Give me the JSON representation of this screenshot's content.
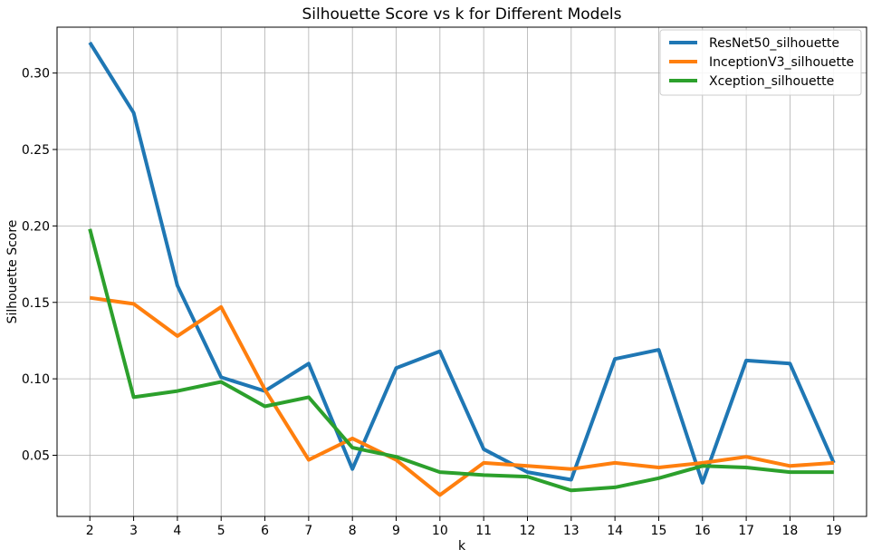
{
  "chart_data": {
    "type": "line",
    "title": "Silhouette Score vs k for Different Models",
    "xlabel": "k",
    "ylabel": "Silhouette Score",
    "x": [
      2,
      3,
      4,
      5,
      6,
      7,
      8,
      9,
      10,
      11,
      12,
      13,
      14,
      15,
      16,
      17,
      18,
      19
    ],
    "xlim": [
      1.25,
      19.75
    ],
    "ylim": [
      0.01,
      0.33
    ],
    "yticks": [
      0.05,
      0.1,
      0.15,
      0.2,
      0.25,
      0.3
    ],
    "ytick_labels": [
      "0.05",
      "0.10",
      "0.15",
      "0.20",
      "0.25",
      "0.30"
    ],
    "grid": true,
    "legend_position": "top-right",
    "series": [
      {
        "name": "ResNet50_silhouette",
        "color": "#1f77b4",
        "values": [
          0.32,
          0.274,
          0.161,
          0.101,
          0.092,
          0.11,
          0.041,
          0.107,
          0.118,
          0.054,
          0.039,
          0.034,
          0.113,
          0.119,
          0.032,
          0.112,
          0.11,
          0.045
        ]
      },
      {
        "name": "InceptionV3_silhouette",
        "color": "#ff7f0e",
        "values": [
          0.153,
          0.149,
          0.128,
          0.147,
          0.093,
          0.047,
          0.061,
          0.047,
          0.024,
          0.045,
          0.043,
          0.041,
          0.045,
          0.042,
          0.045,
          0.049,
          0.043,
          0.045
        ]
      },
      {
        "name": "Xception_silhouette",
        "color": "#2ca02c",
        "values": [
          0.198,
          0.088,
          0.092,
          0.098,
          0.082,
          0.088,
          0.055,
          0.049,
          0.039,
          0.037,
          0.036,
          0.027,
          0.029,
          0.035,
          0.043,
          0.042,
          0.039,
          0.039
        ]
      }
    ]
  }
}
